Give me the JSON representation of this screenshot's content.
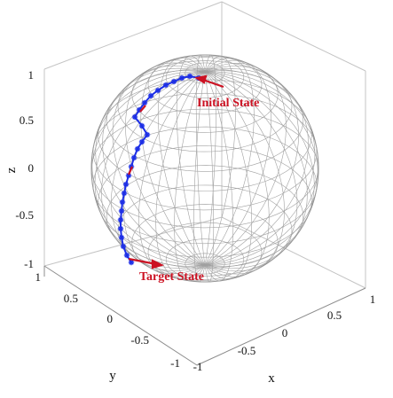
{
  "figure": {
    "axis_labels": {
      "x": "x",
      "y": "y",
      "z": "z"
    },
    "z_ticks": [
      "1",
      "0.5",
      "0",
      "-0.5",
      "-1"
    ],
    "y_ticks": [
      "1",
      "0.5",
      "0",
      "-0.5",
      "-1"
    ],
    "x_ticks": [
      "-1",
      "-0.5",
      "0",
      "0.5",
      "1"
    ],
    "annotations": {
      "initial": "Initial State",
      "target": "Target State"
    }
  },
  "colors": {
    "trajectory": "#1c2ee6",
    "vector": "#cc1122",
    "annotation": "#cc1122",
    "sphere_mesh": "#9a9a9a",
    "box": "#b8b8b8"
  }
}
